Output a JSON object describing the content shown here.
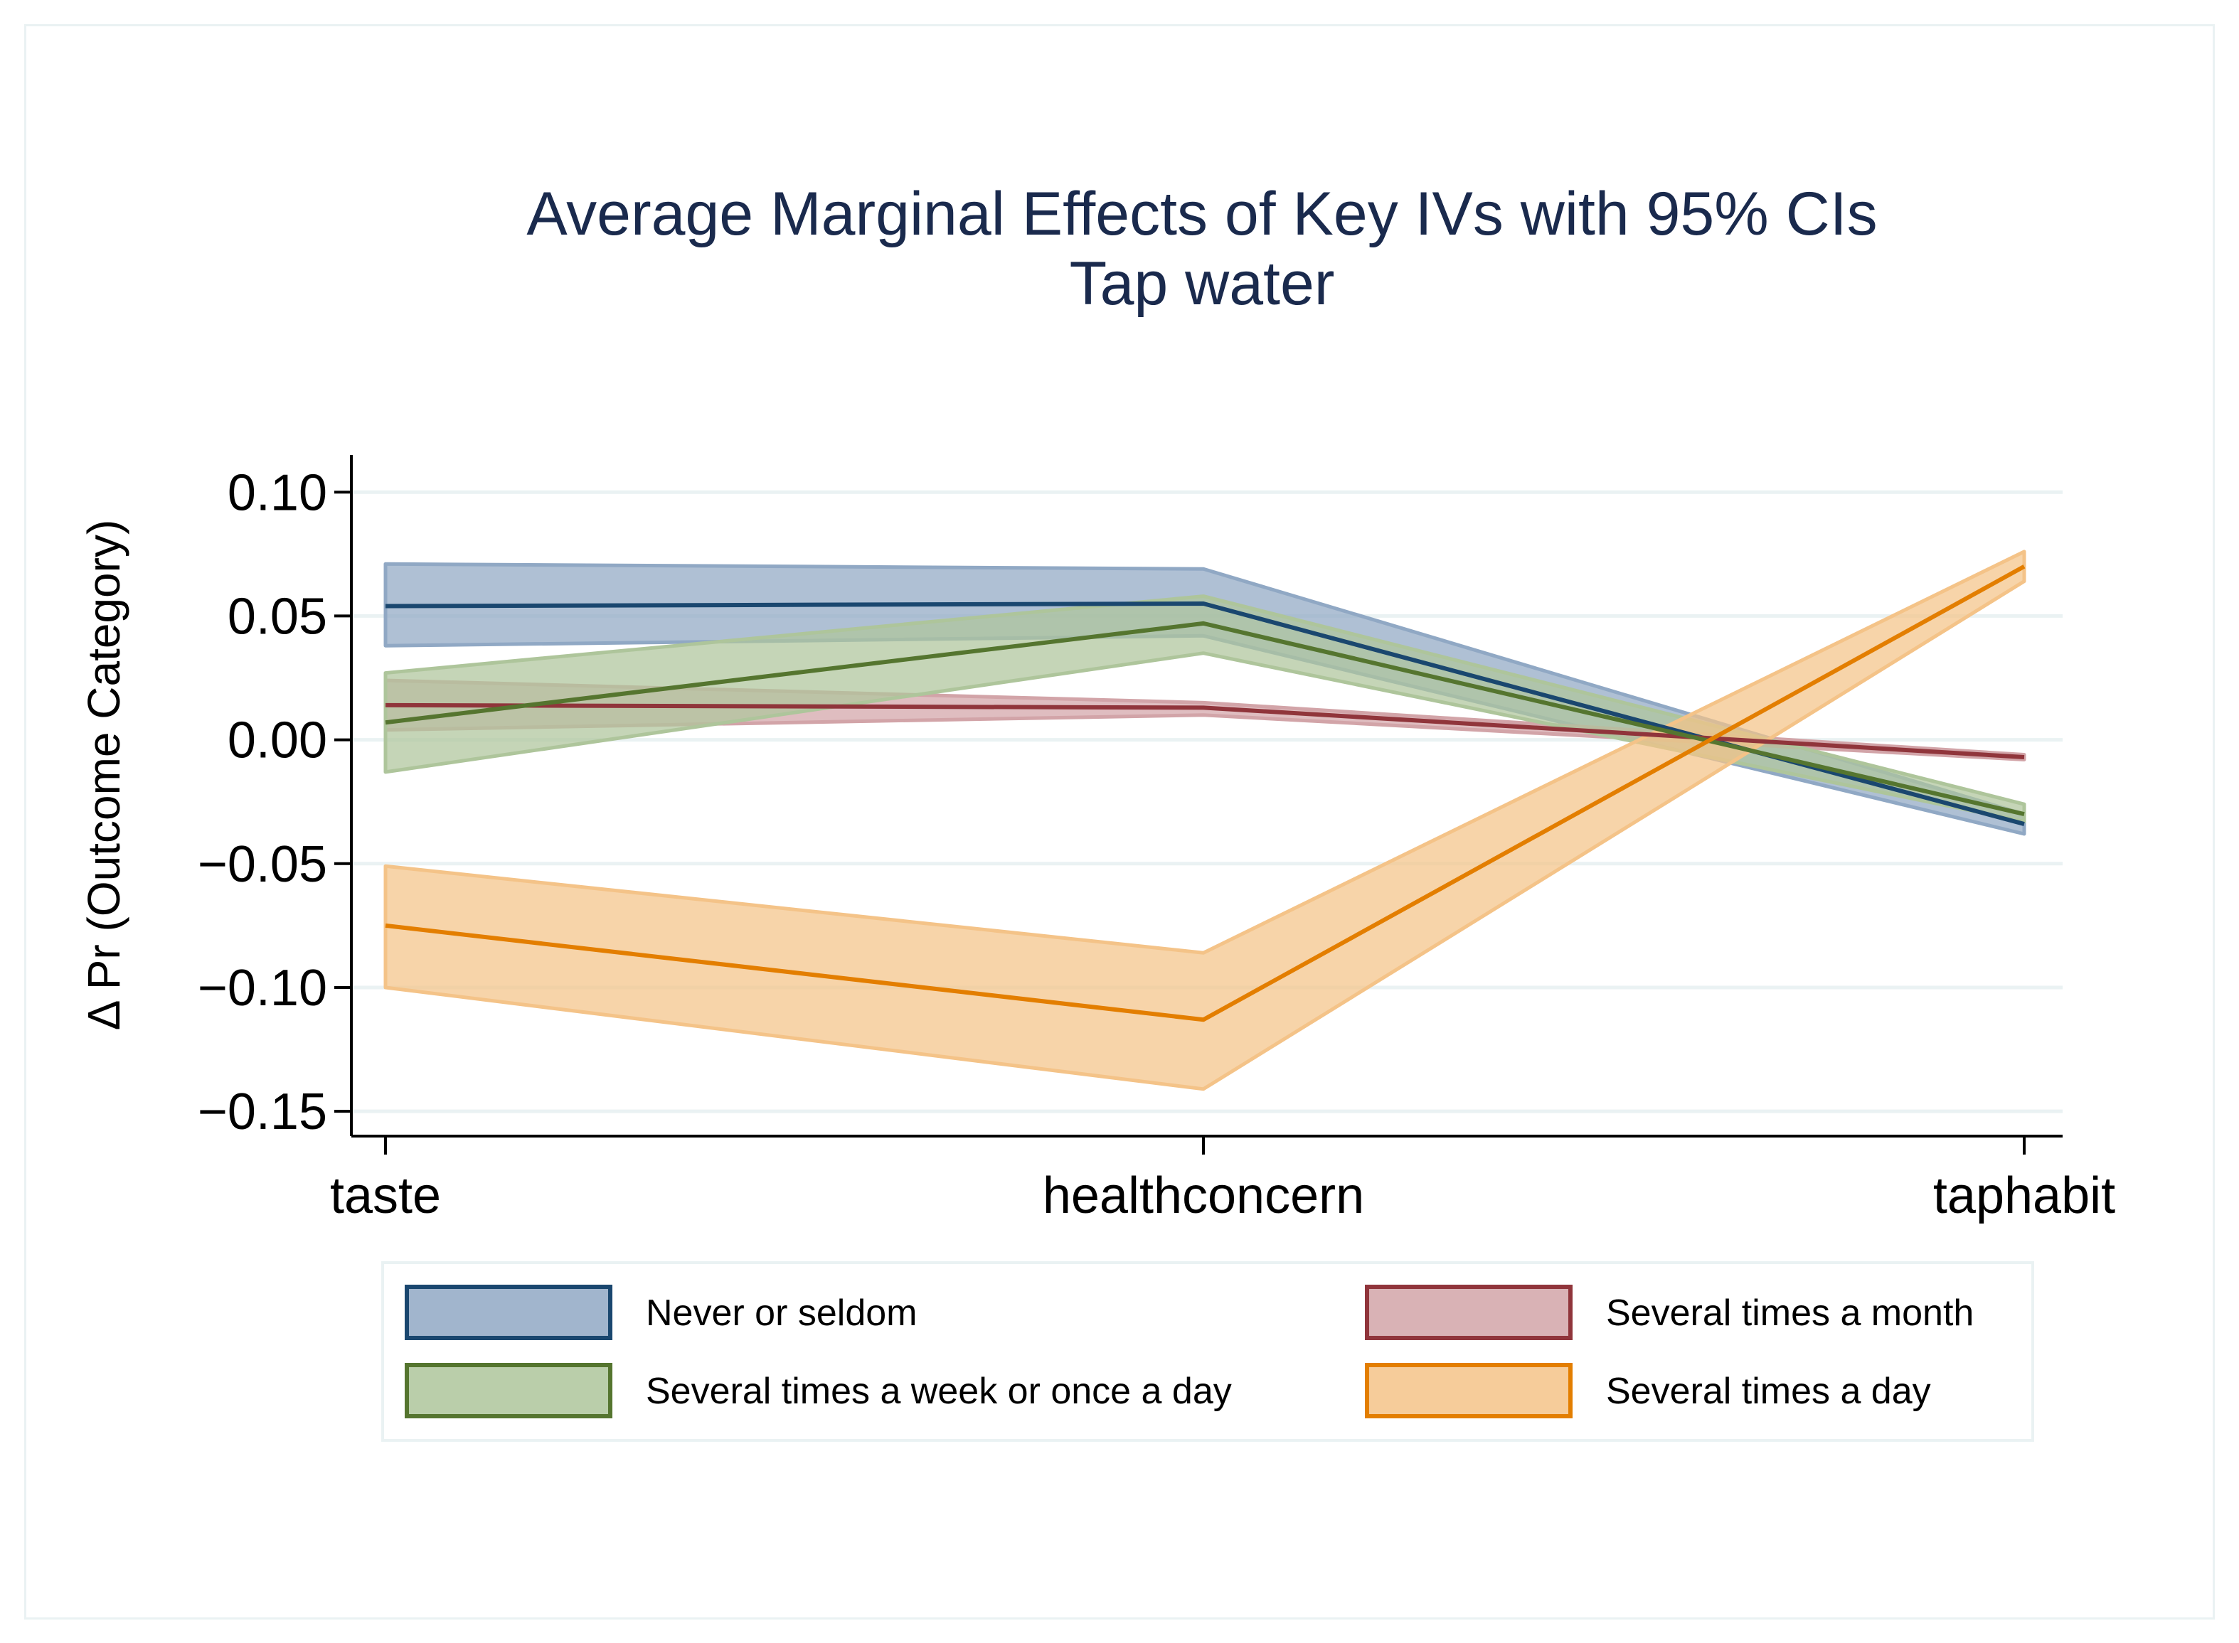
{
  "chart_data": {
    "type": "line",
    "title": "Average Marginal Effects of Key IVs with 95% CIs",
    "subtitle": "Tap water",
    "xlabel": "",
    "ylabel": "Δ  Pr (Outcome Category)",
    "categories": [
      "taste",
      "healthconcern",
      "taphabit"
    ],
    "ylim": [
      -0.16,
      0.115
    ],
    "yticks": [
      0.1,
      0.05,
      0.0,
      -0.05,
      -0.1,
      -0.15
    ],
    "ytick_labels": [
      "0.10",
      "0.05",
      "0.00",
      "−0.05",
      "−0.10",
      "−0.15"
    ],
    "grid": true,
    "legend_position": "bottom",
    "series": [
      {
        "name": "Never or seldom",
        "values": [
          0.054,
          0.055,
          -0.034
        ],
        "ci_low": [
          0.038,
          0.042,
          -0.038
        ],
        "ci_high": [
          0.071,
          0.069,
          -0.03
        ],
        "color": "#1a476f",
        "fill": "#90a8c4"
      },
      {
        "name": "Several times a month",
        "values": [
          0.014,
          0.013,
          -0.007
        ],
        "ci_low": [
          0.004,
          0.01,
          -0.008
        ],
        "ci_high": [
          0.024,
          0.015,
          -0.006
        ],
        "color": "#90353b",
        "fill": "#d2a4a8"
      },
      {
        "name": "Several times a week or once a day",
        "values": [
          0.007,
          0.047,
          -0.03
        ],
        "ci_low": [
          -0.013,
          0.035,
          -0.033
        ],
        "ci_high": [
          0.027,
          0.058,
          -0.026
        ],
        "color": "#55752f",
        "fill": "#aec59b"
      },
      {
        "name": "Several times a day",
        "values": [
          -0.075,
          -0.113,
          0.07
        ],
        "ci_low": [
          -0.1,
          -0.141,
          0.064
        ],
        "ci_high": [
          -0.051,
          -0.086,
          0.076
        ],
        "color": "#e37e00",
        "fill": "#f4c388"
      }
    ]
  },
  "legend": {
    "items": [
      {
        "label": "Never or seldom",
        "series": 0
      },
      {
        "label": "Several times a month",
        "series": 1
      },
      {
        "label": "Several times a week or once a day",
        "series": 2
      },
      {
        "label": "Several times a day",
        "series": 3
      }
    ]
  }
}
